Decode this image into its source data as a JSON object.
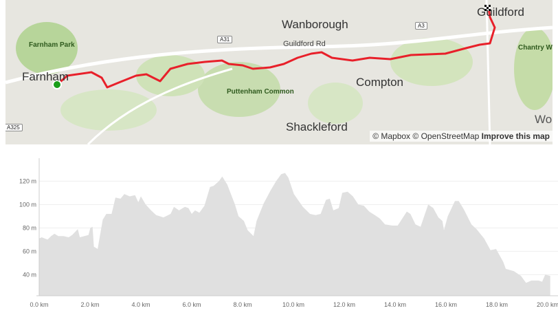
{
  "map": {
    "labels": {
      "guildford": "Guildford",
      "wanborough": "Wanborough",
      "farnham_park": "Farnham Park",
      "farnham": "Farnham",
      "a31": "A31",
      "guildford_rd": "Guildford Rd",
      "a3": "A3",
      "chantry": "Chantry W",
      "puttenham": "Puttenham Common",
      "compton": "Compton",
      "shackleford": "Shackleford",
      "a325": "A325",
      "wo": "Wo"
    },
    "attribution": {
      "mapbox": "© Mapbox",
      "osm": "© OpenStreetMap",
      "improve": "Improve this map"
    },
    "route_color": "#e8202a",
    "start_marker_color": "#1a9e1a",
    "finish_icon": "checkered-flag-icon"
  },
  "chart_data": {
    "type": "area",
    "xlabel": "",
    "ylabel": "",
    "xlim": [
      0,
      20.1
    ],
    "ylim": [
      22,
      139
    ],
    "x_ticks": [
      "0.0 km",
      "2.0 km",
      "4.0 km",
      "6.0 km",
      "8.0 km",
      "10.0 km",
      "12.0 km",
      "14.0 km",
      "16.0 km",
      "18.0 km",
      "20.0 km"
    ],
    "y_ticks": [
      "40 m",
      "60 m",
      "80 m",
      "100 m",
      "120 m"
    ],
    "grid": true,
    "fill_color": "#e0e0e0",
    "x": [
      0,
      0.1,
      0.33,
      0.47,
      0.6,
      0.75,
      0.95,
      1.16,
      1.3,
      1.52,
      1.6,
      1.94,
      2.01,
      2.1,
      2.15,
      2.3,
      2.5,
      2.64,
      2.85,
      3.0,
      3.2,
      3.35,
      3.56,
      3.77,
      3.9,
      4.0,
      4.19,
      4.4,
      4.6,
      4.89,
      5.17,
      5.3,
      5.5,
      5.73,
      5.87,
      6.0,
      6.13,
      6.3,
      6.5,
      6.72,
      6.86,
      7.07,
      7.2,
      7.4,
      7.7,
      7.84,
      8.05,
      8.2,
      8.43,
      8.55,
      8.83,
      9.1,
      9.32,
      9.52,
      9.67,
      9.8,
      10.02,
      10.37,
      10.65,
      10.87,
      11.07,
      11.28,
      11.43,
      11.57,
      11.78,
      11.92,
      12.13,
      12.34,
      12.55,
      12.77,
      12.98,
      13.2,
      13.4,
      13.6,
      13.9,
      14.1,
      14.46,
      14.6,
      14.8,
      15.0,
      15.3,
      15.5,
      15.7,
      15.86,
      15.92,
      16.07,
      16.35,
      16.5,
      16.7,
      17.0,
      17.2,
      17.5,
      17.75,
      17.97,
      18.25,
      18.35,
      18.67,
      18.95,
      19.15,
      19.36,
      19.64,
      19.78,
      19.9,
      20.1
    ],
    "y": [
      71,
      72,
      70,
      73,
      75,
      73,
      73,
      72,
      74,
      79,
      72,
      74,
      80,
      81,
      64,
      62,
      87,
      92,
      92,
      106,
      105,
      109,
      107,
      108,
      102,
      107,
      100,
      95,
      91,
      89,
      92,
      98,
      95,
      98,
      97,
      92,
      95,
      93,
      99,
      115,
      116,
      120,
      124,
      117,
      100,
      90,
      86,
      78,
      73,
      86,
      101,
      112,
      120,
      126,
      127,
      123,
      109,
      98,
      92,
      91,
      92,
      104,
      105,
      95,
      97,
      110,
      111,
      107,
      100,
      99,
      94,
      91,
      88,
      83,
      82,
      82,
      94,
      92,
      83,
      81,
      100,
      97,
      89,
      86,
      78,
      90,
      103,
      103,
      96,
      83,
      79,
      71,
      61,
      62,
      51,
      45,
      43,
      39,
      33,
      35,
      35,
      34,
      40,
      39
    ]
  }
}
